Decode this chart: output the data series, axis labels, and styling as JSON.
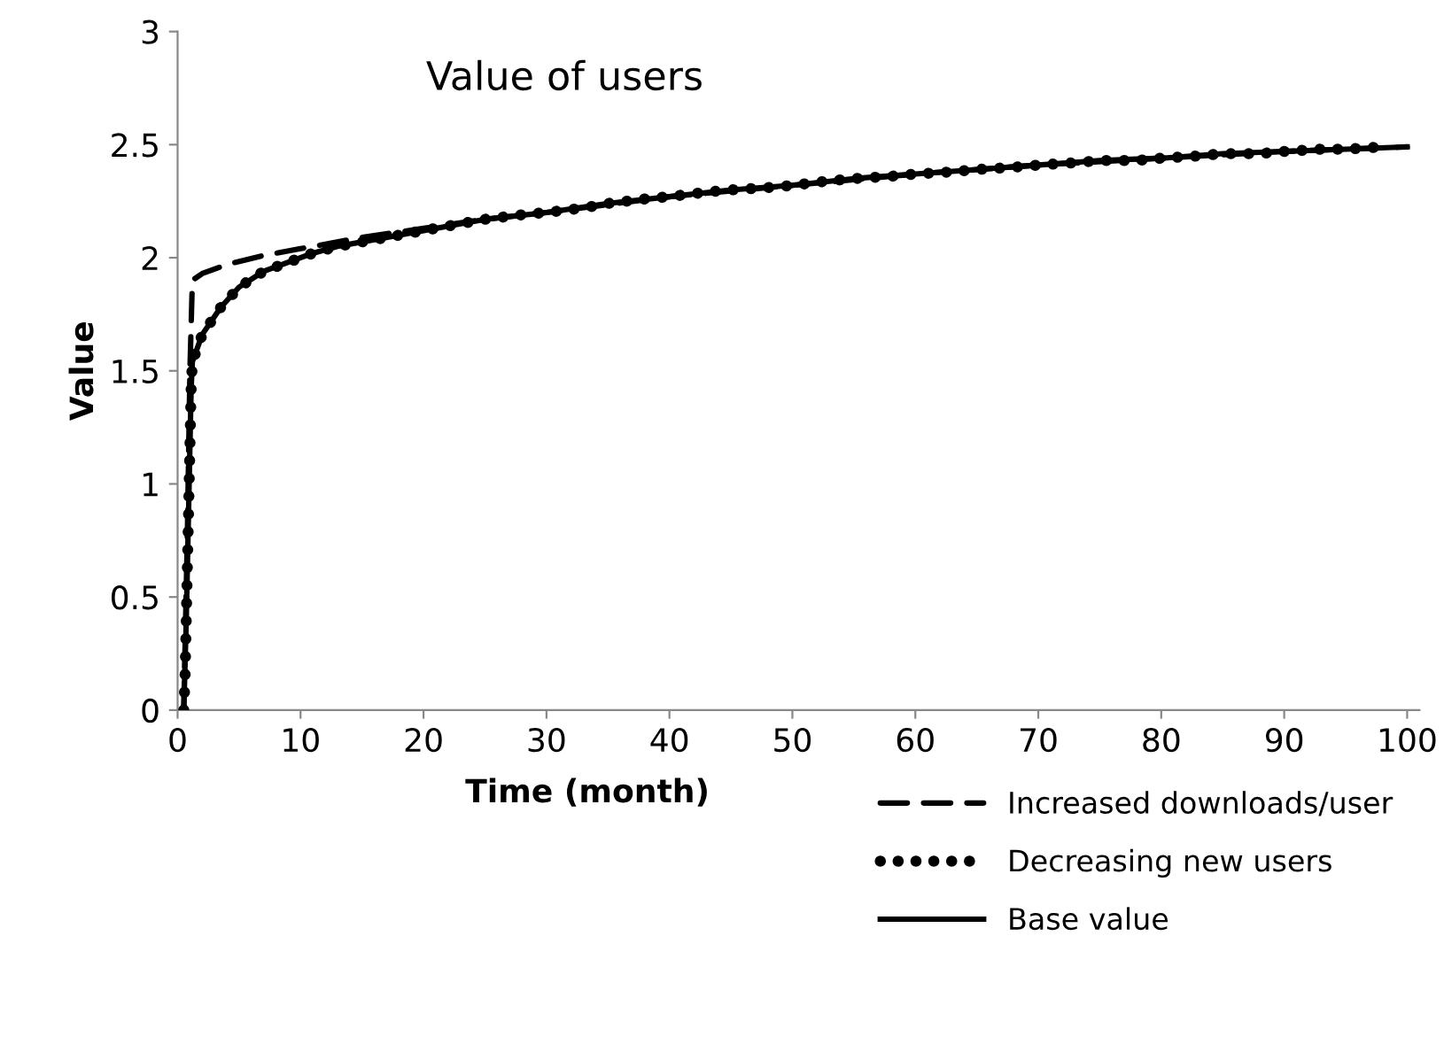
{
  "chart_data": {
    "type": "line",
    "title": "Value of users",
    "xlabel": "Time (month)",
    "ylabel": "Value",
    "xlim": [
      0,
      101
    ],
    "xticks": [
      0,
      10,
      20,
      30,
      40,
      50,
      60,
      70,
      80,
      90,
      100
    ],
    "ylim": [
      0,
      3
    ],
    "yticks": [
      0,
      0.5,
      1,
      1.5,
      2,
      2.5,
      3
    ],
    "grid": false,
    "legend": "bottom right",
    "series": [
      {
        "name": "Increased downloads/user",
        "color": "#000000",
        "line_style": "dashed",
        "marker": "none",
        "x": [
          0.5,
          0.8,
          1.0,
          1.2,
          2,
          4,
          7,
          10,
          15,
          20,
          25,
          30,
          40,
          50,
          60,
          70,
          80,
          90,
          100
        ],
        "values": [
          0,
          0.8,
          1.5,
          1.9,
          1.93,
          1.97,
          2.01,
          2.04,
          2.09,
          2.13,
          2.17,
          2.2,
          2.27,
          2.32,
          2.37,
          2.41,
          2.44,
          2.47,
          2.49
        ]
      },
      {
        "name": "Decreasing new users",
        "color": "#000000",
        "line_style": "dotted",
        "marker": "none",
        "x": [
          0.5,
          0.6,
          0.65,
          0.7,
          0.75,
          0.8,
          0.85,
          0.9,
          0.95,
          1.0,
          1.05,
          1.1,
          1.2,
          2,
          3.5,
          5,
          7,
          9,
          11,
          13,
          16,
          18,
          20,
          23,
          25,
          28,
          30,
          33,
          35,
          38,
          40,
          43,
          45,
          48,
          50,
          53,
          55,
          58,
          60,
          63,
          65,
          68,
          70,
          73,
          75,
          78,
          80,
          83,
          85,
          88,
          90,
          93,
          95,
          98
        ],
        "values": [
          0,
          0.13,
          0.26,
          0.39,
          0.52,
          0.65,
          0.77,
          0.9,
          1.03,
          1.16,
          1.29,
          1.42,
          1.54,
          1.66,
          1.78,
          1.87,
          1.94,
          1.98,
          2.02,
          2.05,
          2.08,
          2.1,
          2.12,
          2.15,
          2.17,
          2.19,
          2.2,
          2.22,
          2.24,
          2.26,
          2.27,
          2.29,
          2.3,
          2.31,
          2.32,
          2.34,
          2.35,
          2.36,
          2.37,
          2.38,
          2.39,
          2.4,
          2.41,
          2.42,
          2.43,
          2.43,
          2.44,
          2.45,
          2.46,
          2.46,
          2.47,
          2.48,
          2.48,
          2.49
        ]
      },
      {
        "name": "Base value",
        "color": "#000000",
        "line_style": "solid",
        "x": [
          0.5,
          0.7,
          0.9,
          1.1,
          1.2,
          2,
          3.5,
          5,
          7,
          9,
          11,
          13,
          16,
          20,
          25,
          30,
          35,
          40,
          45,
          50,
          55,
          60,
          65,
          70,
          75,
          80,
          85,
          90,
          95,
          100
        ],
        "values": [
          0,
          0.39,
          0.9,
          1.42,
          1.54,
          1.66,
          1.78,
          1.87,
          1.94,
          1.98,
          2.02,
          2.05,
          2.08,
          2.12,
          2.17,
          2.2,
          2.24,
          2.27,
          2.3,
          2.32,
          2.35,
          2.37,
          2.39,
          2.41,
          2.43,
          2.44,
          2.46,
          2.47,
          2.48,
          2.49
        ]
      }
    ]
  }
}
